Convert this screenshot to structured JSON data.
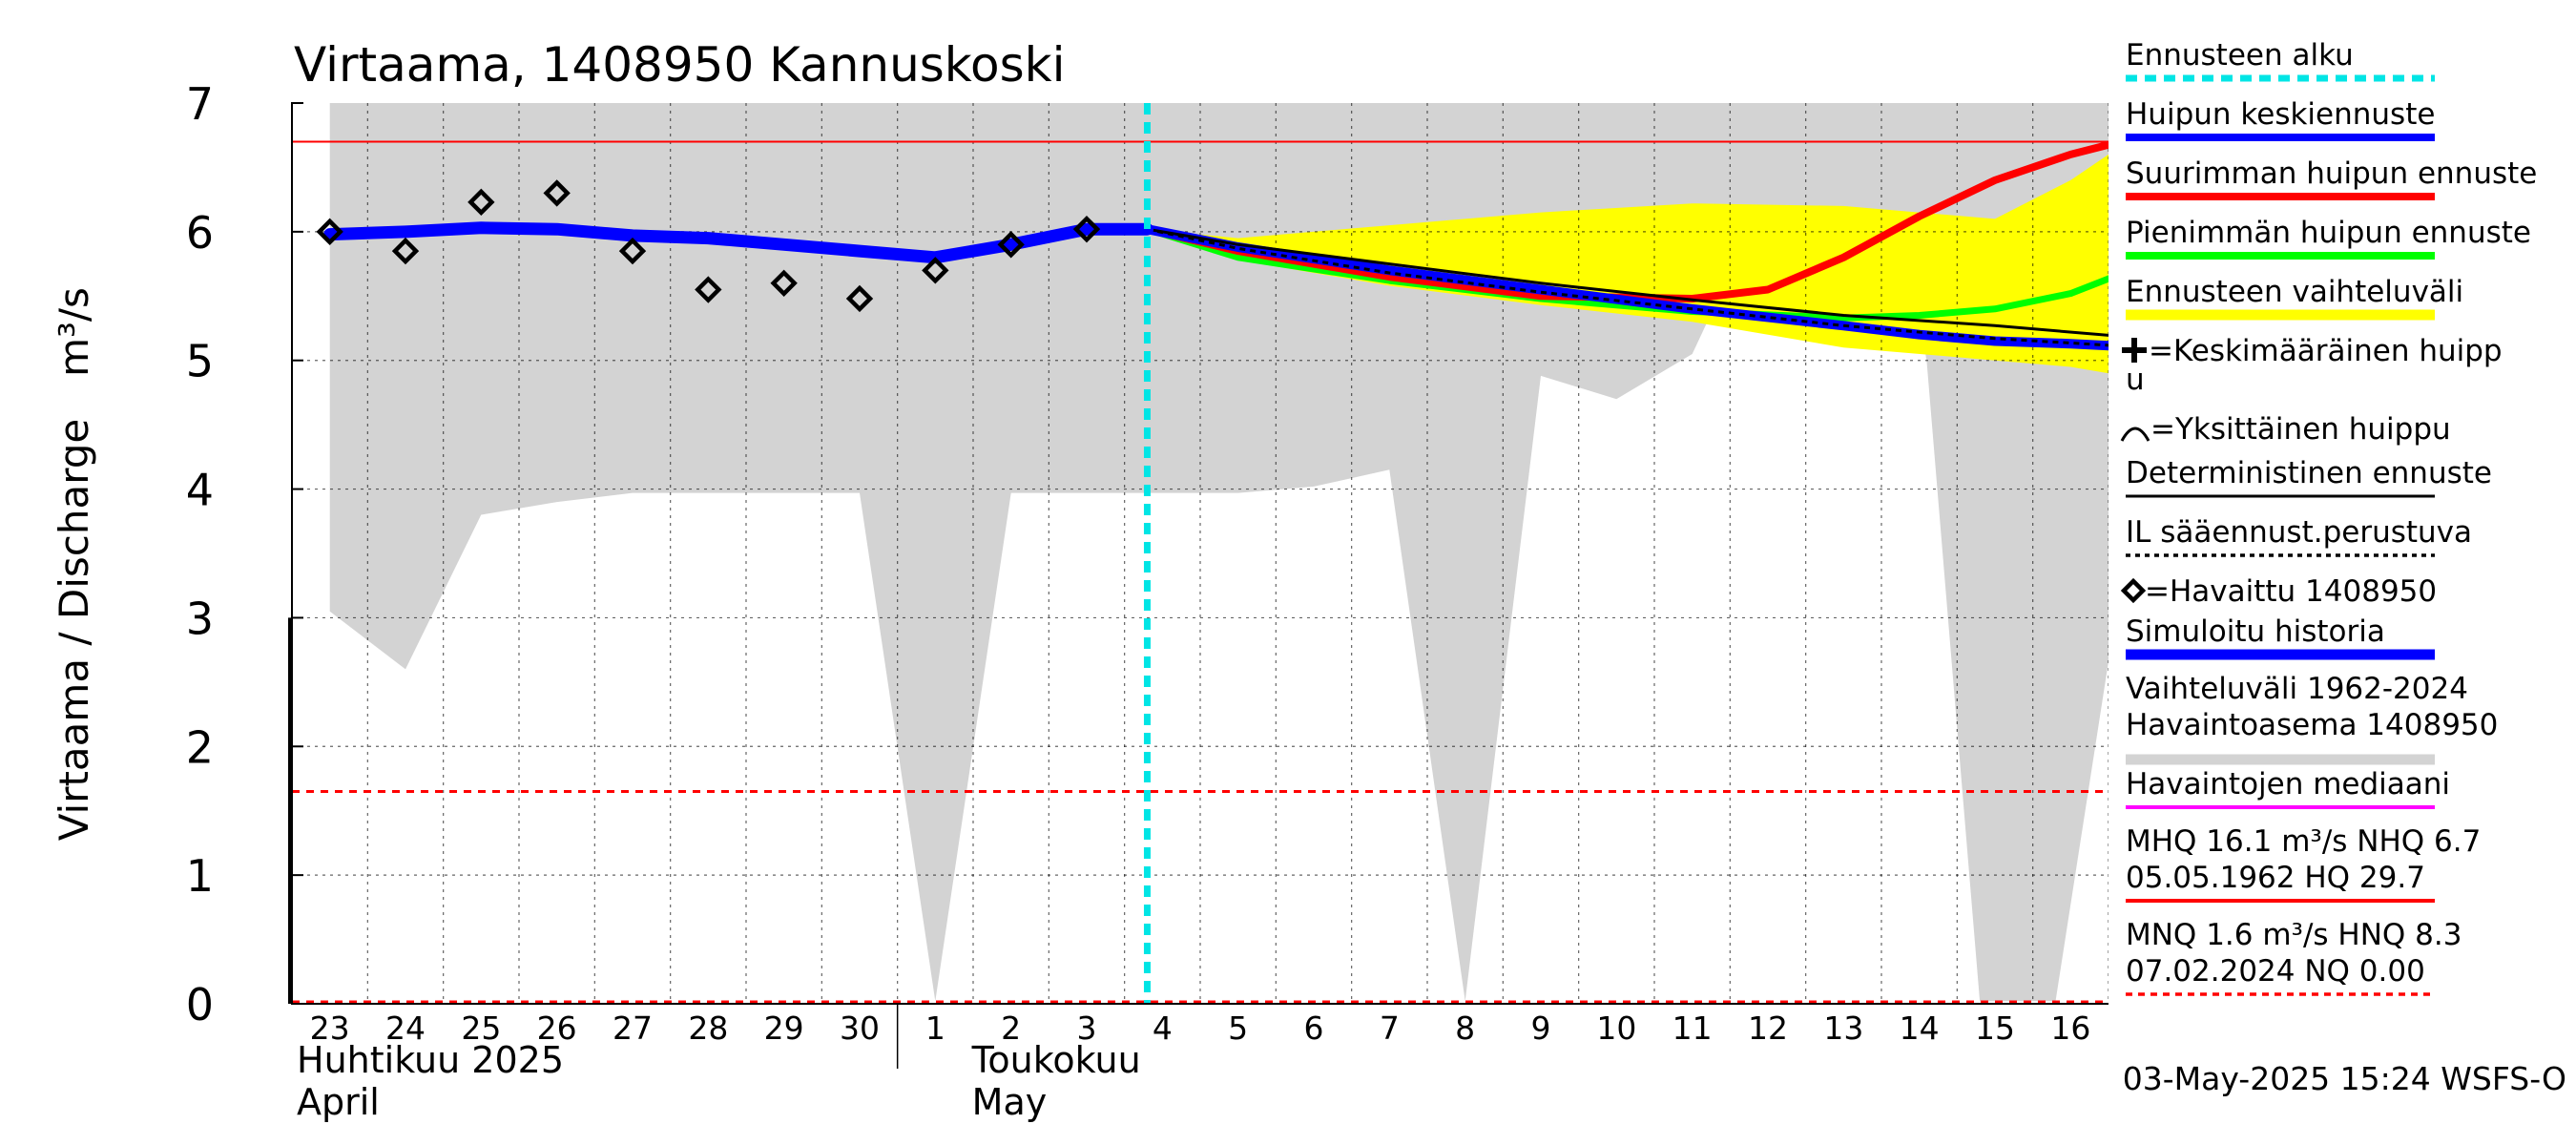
{
  "chart_data": {
    "type": "line",
    "title": "Virtaama, 1408950 Kannuskoski",
    "ylabel": "Virtaama / Discharge",
    "yunit": "m³/s",
    "ylim": [
      0,
      7
    ],
    "yticks": [
      "0",
      "1",
      "2",
      "3",
      "4",
      "5",
      "6",
      "7"
    ],
    "x_day_labels": [
      "23",
      "24",
      "25",
      "26",
      "27",
      "28",
      "29",
      "30",
      "1",
      "2",
      "3",
      "4",
      "5",
      "6",
      "7",
      "8",
      "9",
      "10",
      "11",
      "12",
      "13",
      "14",
      "15",
      "16"
    ],
    "month_labels": [
      {
        "fi": "Huhtikuu  2025",
        "en": "April"
      },
      {
        "fi": "Toukokuu",
        "en": "May"
      }
    ],
    "forecast_start_day": 10.8,
    "thresholds": {
      "nhq": 6.7,
      "mnq": 1.65,
      "zero": 0.0
    },
    "series": {
      "range_history_upper": [
        [
          0,
          7
        ],
        [
          24,
          7
        ]
      ],
      "range_history_lower": [
        [
          0,
          3.05
        ],
        [
          1,
          2.6
        ],
        [
          2,
          3.8
        ],
        [
          3,
          3.9
        ],
        [
          4,
          3.97
        ],
        [
          7,
          3.97
        ],
        [
          8,
          0.02
        ],
        [
          9,
          3.97
        ],
        [
          12,
          3.97
        ],
        [
          13,
          4.02
        ],
        [
          14,
          4.15
        ],
        [
          15,
          0.02
        ],
        [
          16,
          4.88
        ],
        [
          17,
          4.7
        ],
        [
          18,
          5.05
        ],
        [
          18.2,
          5.3
        ],
        [
          20,
          5.35
        ],
        [
          21,
          5.38
        ],
        [
          21.1,
          4.98
        ],
        [
          21.8,
          0.02
        ],
        [
          22.8,
          0.02
        ],
        [
          24,
          4.55
        ]
      ],
      "forecast_range_upper": [
        [
          10.8,
          6.02
        ],
        [
          12,
          5.95
        ],
        [
          14,
          6.05
        ],
        [
          16,
          6.15
        ],
        [
          18,
          6.22
        ],
        [
          20,
          6.2
        ],
        [
          22,
          6.1
        ],
        [
          23,
          6.4
        ],
        [
          23.5,
          6.6
        ],
        [
          24,
          6.7
        ]
      ],
      "forecast_range_lower": [
        [
          10.8,
          6.02
        ],
        [
          12,
          5.78
        ],
        [
          14,
          5.58
        ],
        [
          16,
          5.43
        ],
        [
          18,
          5.3
        ],
        [
          20,
          5.1
        ],
        [
          22,
          5.0
        ],
        [
          23,
          4.95
        ],
        [
          24,
          4.85
        ]
      ],
      "peak_max_forecast": [
        [
          10.8,
          6.02
        ],
        [
          12,
          5.85
        ],
        [
          14,
          5.65
        ],
        [
          16,
          5.5
        ],
        [
          18,
          5.48
        ],
        [
          19,
          5.55
        ],
        [
          20,
          5.8
        ],
        [
          21,
          6.12
        ],
        [
          22,
          6.4
        ],
        [
          23,
          6.6
        ],
        [
          24,
          6.75
        ]
      ],
      "peak_min_forecast": [
        [
          10.8,
          6.02
        ],
        [
          12,
          5.8
        ],
        [
          14,
          5.62
        ],
        [
          16,
          5.48
        ],
        [
          18,
          5.38
        ],
        [
          20,
          5.33
        ],
        [
          21,
          5.35
        ],
        [
          22,
          5.4
        ],
        [
          23,
          5.52
        ],
        [
          24,
          5.75
        ]
      ],
      "peak_mean_forecast": [
        [
          10.8,
          6.02
        ],
        [
          12,
          5.88
        ],
        [
          14,
          5.7
        ],
        [
          16,
          5.55
        ],
        [
          18,
          5.4
        ],
        [
          20,
          5.27
        ],
        [
          21,
          5.2
        ],
        [
          22,
          5.15
        ],
        [
          23,
          5.13
        ],
        [
          24,
          5.1
        ]
      ],
      "deterministic": [
        [
          10.8,
          6.02
        ],
        [
          12,
          5.9
        ],
        [
          14,
          5.75
        ],
        [
          16,
          5.6
        ],
        [
          18,
          5.47
        ],
        [
          20,
          5.35
        ],
        [
          22,
          5.27
        ],
        [
          24,
          5.17
        ]
      ],
      "il_forecast": [
        [
          10.8,
          6.02
        ],
        [
          12,
          5.87
        ],
        [
          14,
          5.68
        ],
        [
          16,
          5.53
        ],
        [
          18,
          5.4
        ],
        [
          20,
          5.27
        ],
        [
          22,
          5.17
        ],
        [
          24,
          5.1
        ]
      ],
      "simulated_history": [
        [
          0,
          5.98
        ],
        [
          1,
          6.0
        ],
        [
          2,
          6.03
        ],
        [
          3,
          6.02
        ],
        [
          4,
          5.97
        ],
        [
          5,
          5.95
        ],
        [
          6,
          5.9
        ],
        [
          7,
          5.85
        ],
        [
          8,
          5.8
        ],
        [
          9,
          5.9
        ],
        [
          10,
          6.02
        ],
        [
          10.8,
          6.02
        ]
      ],
      "observed": [
        [
          0,
          6.0
        ],
        [
          1,
          5.85
        ],
        [
          2,
          6.23
        ],
        [
          3,
          6.3
        ],
        [
          4,
          5.85
        ],
        [
          5,
          5.55
        ],
        [
          6,
          5.6
        ],
        [
          7,
          5.48
        ],
        [
          8,
          5.7
        ],
        [
          9,
          5.9
        ],
        [
          10,
          6.02
        ]
      ]
    },
    "legend": [
      {
        "key": "forecast_start",
        "label": "Ennusteen alku",
        "color": "#00e5e5",
        "style": "dashed"
      },
      {
        "key": "peak_mean",
        "label": "Huipun keskiennuste",
        "color": "#0000ff",
        "style": "solid"
      },
      {
        "key": "peak_max",
        "label": "Suurimman huipun ennuste",
        "color": "#ff0000",
        "style": "solid"
      },
      {
        "key": "peak_min",
        "label": "Pienimmän huipun ennuste",
        "color": "#00ff00",
        "style": "solid"
      },
      {
        "key": "forecast_range",
        "label": "Ennusteen vaihteluväli",
        "color": "#ffff00",
        "style": "band"
      },
      {
        "key": "mean_peak_marker",
        "label": "=Keskimääräinen huipp",
        "label2": "u",
        "color": "#000000",
        "style": "plus"
      },
      {
        "key": "single_peak_marker",
        "label": "=Yksittäinen huippu",
        "color": "#000000",
        "style": "arc"
      },
      {
        "key": "deterministic",
        "label": "Deterministinen ennuste",
        "color": "#000000",
        "style": "solid"
      },
      {
        "key": "il_forecast",
        "label": "IL sääennust.perustuva",
        "color": "#000000",
        "style": "dotted"
      },
      {
        "key": "observed",
        "label": "=Havaittu 1408950",
        "color": "#000000",
        "style": "diamond"
      },
      {
        "key": "simulated",
        "label": "Simuloitu historia",
        "color": "#0000ff",
        "style": "thick"
      },
      {
        "key": "range_history",
        "label": "Vaihteluväli 1962-2024",
        "label2": " Havaintoasema 1408950",
        "color": "#d3d3d3",
        "style": "band"
      },
      {
        "key": "median",
        "label": "Havaintojen mediaani",
        "color": "#ff00ff",
        "style": "solid"
      },
      {
        "key": "mhq",
        "label": "MHQ 16.1 m³/s NHQ  6.7",
        "label2": "05.05.1962 HQ 29.7",
        "color": "#ff0000",
        "style": "solid"
      },
      {
        "key": "mnq",
        "label": "MNQ  1.6 m³/s HNQ  8.3",
        "label2": "07.02.2024 NQ 0.00",
        "color": "#ff0000",
        "style": "dashed"
      }
    ],
    "footer": "03-May-2025 15:24 WSFS-O",
    "colors": {
      "range_history": "#d3d3d3",
      "forecast_range": "#ffff00",
      "peak_max": "#ff0000",
      "peak_min": "#00ff00",
      "peak_mean": "#0000ff",
      "simulated": "#0000ff",
      "forecast_start": "#00e5e5",
      "threshold": "#ff0000"
    }
  }
}
